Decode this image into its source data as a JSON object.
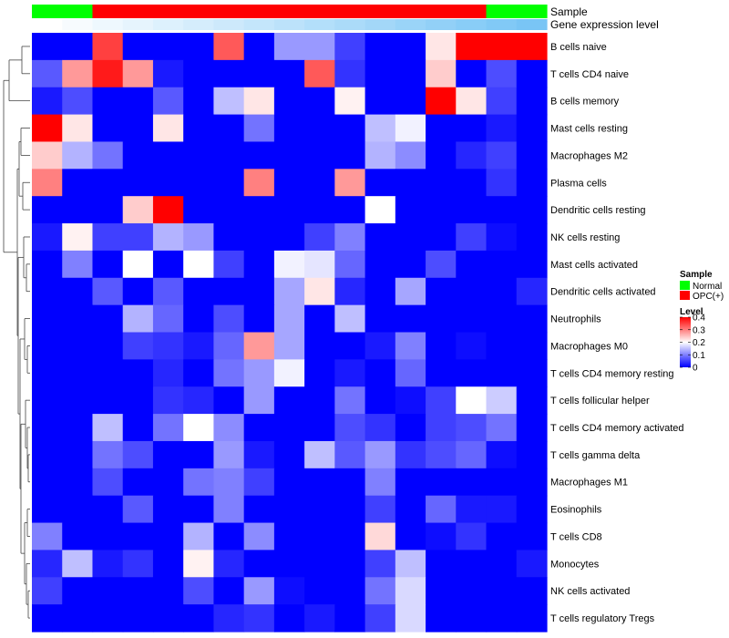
{
  "chart_data": {
    "type": "heatmap",
    "annotation_tracks": [
      {
        "name": "Sample",
        "values": [
          "Normal",
          "Normal",
          "OPC(+)",
          "OPC(+)",
          "OPC(+)",
          "OPC(+)",
          "OPC(+)",
          "OPC(+)",
          "OPC(+)",
          "OPC(+)",
          "OPC(+)",
          "OPC(+)",
          "OPC(+)",
          "OPC(+)",
          "OPC(+)",
          "Normal",
          "Normal"
        ]
      },
      {
        "name": "Gene expression level",
        "values": [
          0.0,
          0.06,
          0.12,
          0.18,
          0.24,
          0.3,
          0.36,
          0.42,
          0.48,
          0.54,
          0.6,
          0.66,
          0.72,
          0.78,
          0.84,
          0.9,
          0.96
        ]
      }
    ],
    "rows": [
      "B cells naive",
      "T cells CD4 naive",
      "B cells memory",
      "Mast cells resting",
      "Macrophages M2",
      "Plasma cells",
      "Dendritic cells resting",
      "NK cells resting",
      "Mast cells activated",
      "Dendritic cells activated",
      "Neutrophils",
      "Macrophages M0",
      "T cells CD4 memory resting",
      "T cells follicular helper",
      "T cells CD4 memory activated",
      "T cells gamma delta",
      "Macrophages M1",
      "Eosinophils",
      "T cells CD8",
      "Monocytes",
      "NK cells activated",
      "T cells regulatory  Tregs"
    ],
    "values": [
      [
        0,
        0,
        0.35,
        0,
        0,
        0,
        0.33,
        0,
        0.12,
        0.12,
        0.05,
        0,
        0,
        0.22,
        0.4,
        0.4,
        0.4
      ],
      [
        0.07,
        0.28,
        0.38,
        0.28,
        0.02,
        0,
        0,
        0,
        0,
        0.33,
        0.04,
        0,
        0,
        0.24,
        0,
        0.06,
        0
      ],
      [
        0.02,
        0.06,
        0,
        0,
        0.07,
        0,
        0.15,
        0.22,
        0,
        0,
        0.21,
        0,
        0,
        0.4,
        0.22,
        0.05,
        0
      ],
      [
        0.4,
        0.22,
        0,
        0,
        0.22,
        0,
        0,
        0.09,
        0,
        0,
        0,
        0.15,
        0.19,
        0,
        0,
        0.02,
        0
      ],
      [
        0.24,
        0.14,
        0.09,
        0,
        0,
        0,
        0,
        0,
        0,
        0,
        0,
        0.14,
        0.11,
        0,
        0.03,
        0.05,
        0
      ],
      [
        0.3,
        0,
        0,
        0,
        0,
        0,
        0,
        0.3,
        0,
        0,
        0.28,
        0,
        0,
        0,
        0,
        0.04,
        0
      ],
      [
        0,
        0,
        0,
        0.24,
        0.4,
        0,
        0,
        0,
        0,
        0,
        0,
        0.2,
        0,
        0,
        0,
        0,
        0
      ],
      [
        0.02,
        0.21,
        0.05,
        0.05,
        0.14,
        0.12,
        0,
        0,
        0,
        0.05,
        0.1,
        0,
        0,
        0,
        0.05,
        0.01,
        0
      ],
      [
        0,
        0.1,
        0,
        0.2,
        0,
        0.2,
        0.05,
        0,
        0.19,
        0.18,
        0.08,
        0,
        0,
        0.06,
        0,
        0,
        0
      ],
      [
        0,
        0,
        0.07,
        0,
        0.07,
        0,
        0,
        0,
        0.13,
        0.22,
        0.03,
        0,
        0.13,
        0,
        0,
        0,
        0.03
      ],
      [
        0,
        0,
        0,
        0.14,
        0.08,
        0,
        0.06,
        0,
        0.13,
        0,
        0.15,
        0,
        0,
        0,
        0,
        0,
        0
      ],
      [
        0,
        0,
        0,
        0.05,
        0.04,
        0.02,
        0.08,
        0.28,
        0.13,
        0,
        0,
        0.02,
        0.1,
        0,
        0.01,
        0,
        0
      ],
      [
        0,
        0,
        0,
        0,
        0.03,
        0,
        0.09,
        0.12,
        0.19,
        0,
        0.02,
        0,
        0.08,
        0,
        0,
        0,
        0
      ],
      [
        0,
        0,
        0,
        0,
        0.04,
        0.03,
        0,
        0.12,
        0,
        0,
        0.09,
        0,
        0.01,
        0.05,
        0.2,
        0.16,
        0
      ],
      [
        0,
        0,
        0.15,
        0,
        0.09,
        0.2,
        0.11,
        0,
        0,
        0,
        0.06,
        0.04,
        0,
        0.05,
        0.06,
        0.09,
        0
      ],
      [
        0,
        0,
        0.09,
        0.06,
        0,
        0,
        0.12,
        0.02,
        0,
        0.15,
        0.07,
        0.12,
        0.04,
        0.06,
        0.08,
        0.01,
        0
      ],
      [
        0,
        0,
        0.06,
        0,
        0,
        0.09,
        0.1,
        0.05,
        0,
        0,
        0,
        0.1,
        0,
        0,
        0,
        0,
        0
      ],
      [
        0,
        0,
        0,
        0.07,
        0,
        0,
        0.1,
        0,
        0,
        0,
        0,
        0.05,
        0,
        0.08,
        0.02,
        0.02,
        0
      ],
      [
        0.1,
        0,
        0,
        0,
        0,
        0.14,
        0,
        0.11,
        0,
        0,
        0,
        0.23,
        0,
        0.01,
        0.04,
        0,
        0
      ],
      [
        0.03,
        0.15,
        0.02,
        0.04,
        0,
        0.21,
        0.03,
        0,
        0,
        0,
        0,
        0.05,
        0.15,
        0,
        0,
        0,
        0.02
      ],
      [
        0.05,
        0,
        0,
        0,
        0,
        0.06,
        0,
        0.12,
        0.01,
        0,
        0,
        0.09,
        0.17,
        0,
        0,
        0,
        0
      ],
      [
        0,
        0,
        0,
        0,
        0,
        0,
        0.03,
        0.04,
        0,
        0.02,
        0,
        0.05,
        0.17,
        0,
        0,
        0,
        0
      ]
    ],
    "legend_sample": {
      "title": "Sample",
      "entries": [
        {
          "label": "Normal",
          "color": "#00ff00"
        },
        {
          "label": "OPC(+)",
          "color": "#ff0000"
        }
      ]
    },
    "legend_level": {
      "title": "Level",
      "ticks": [
        {
          "label": "0.4",
          "value": 0.4
        },
        {
          "label": "0.3",
          "value": 0.3
        },
        {
          "label": "0.2",
          "value": 0.2
        },
        {
          "label": "0.1",
          "value": 0.1
        },
        {
          "label": "0",
          "value": 0
        }
      ]
    },
    "scale": {
      "min": 0,
      "mid": 0.2,
      "max": 0.4,
      "low_color": "#0000ff",
      "mid_color": "#ffffff",
      "high_color": "#ff0000"
    },
    "dendrogram": "rows"
  }
}
